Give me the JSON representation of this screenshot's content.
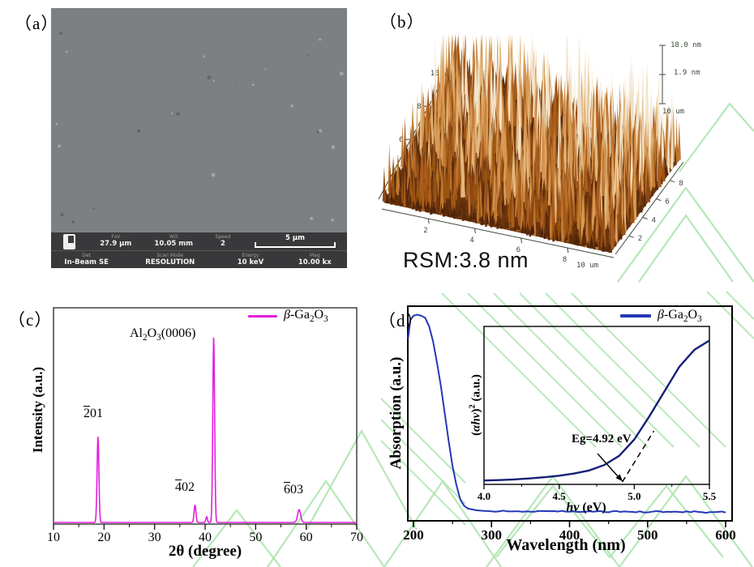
{
  "colors": {
    "xrd_line": "#e120dd",
    "abs_line": "#2438b8",
    "inset_line": "#161f78",
    "watermark": "#a9e3a9",
    "sem_bg": "#7d8082",
    "sem_bar_bg": "#39393b"
  },
  "panels": {
    "a": {
      "label": "（a）",
      "sem": {
        "row1": [
          {
            "label": "FoV",
            "value": "27.9 μm"
          },
          {
            "label": "WD",
            "value": "10.05 mm"
          },
          {
            "label": "Speed",
            "value": "2"
          }
        ],
        "scalebar_label": "5 μm",
        "row2": [
          {
            "label": "Det",
            "value": "In-Beam SE"
          },
          {
            "label": "Scan Mode",
            "value": "RESOLUTION"
          },
          {
            "label": "Energy",
            "value": "10 keV"
          },
          {
            "label": "Mag",
            "value": "10.00 kx"
          }
        ]
      }
    },
    "b": {
      "label": "（b）",
      "rsm_label": "RSM:3.8 nm",
      "z_max": "18.0 nm",
      "z_mid": "1.9 nm",
      "x_end_label": "10 um",
      "y_end_label": "10 um",
      "x_ticks": [
        "2",
        "4",
        "6",
        "8"
      ],
      "y_ticks": [
        "2",
        "4",
        "6",
        "8"
      ],
      "left_ticks": [
        "6",
        "8",
        "10"
      ]
    },
    "c": {
      "label": "（c）",
      "ylabel": "Intensity (a.u.)",
      "xlabel": "2θ (degree)",
      "legend": {
        "beta": "β",
        "rest": "-Ga",
        "sub1": "2",
        "mid": "O",
        "sub2": "3"
      },
      "al2o3": {
        "p1": "Al",
        "s1": "2",
        "p2": "O",
        "s2": "3",
        "p3": "(0006)"
      },
      "peak_labels": {
        "p201": {
          "over": "2",
          "rest": "01"
        },
        "p402": {
          "over": "4",
          "rest": "02"
        },
        "p603": {
          "over": "6",
          "rest": "03"
        }
      }
    },
    "d": {
      "label": "（d）",
      "ylabel": "Absorption (a.u.)",
      "xlabel": "Wavelength (nm)",
      "legend": {
        "beta": "β",
        "rest": "-Ga",
        "sub1": "2",
        "mid": "O",
        "sub2": "3"
      },
      "inset": {
        "ylabel_open": "(",
        "ylabel_italic": "αhv",
        "ylabel_close": ")",
        "ylabel_sup": "2",
        "ylabel_rest": " (a.u.)",
        "xlabel_italic": "hv",
        "xlabel_rest": " (eV)",
        "eg_label": "Eg=4.92 eV"
      }
    }
  },
  "chart_data": [
    {
      "id": "xrd",
      "type": "line",
      "panel": "c",
      "title": "",
      "xlabel": "2θ (degree)",
      "ylabel": "Intensity (a.u.)",
      "xlim": [
        10,
        70
      ],
      "ylim": [
        0,
        1
      ],
      "grid": false,
      "legend_position": "top-right",
      "legend": [
        "β-Ga2O3"
      ],
      "x_ticks": [
        10,
        20,
        30,
        40,
        50,
        60,
        70
      ],
      "peaks": [
        {
          "two_theta": 18.8,
          "rel_intensity": 0.415,
          "sigma": 0.18,
          "label": "-201"
        },
        {
          "two_theta": 38.0,
          "rel_intensity": 0.085,
          "sigma": 0.18,
          "label": "-402"
        },
        {
          "two_theta": 40.3,
          "rel_intensity": 0.028,
          "sigma": 0.15,
          "label": ""
        },
        {
          "two_theta": 41.7,
          "rel_intensity": 0.9,
          "sigma": 0.18,
          "label": "Al2O3(0006)"
        },
        {
          "two_theta": 58.6,
          "rel_intensity": 0.062,
          "sigma": 0.3,
          "label": "-603"
        }
      ]
    },
    {
      "id": "absorption",
      "type": "line",
      "panel": "d",
      "title": "",
      "xlabel": "Wavelength (nm)",
      "ylabel": "Absorption (a.u.)",
      "xlim": [
        190,
        600
      ],
      "ylim": [
        0,
        1
      ],
      "grid": false,
      "legend_position": "top-right",
      "legend": [
        "β-Ga2O3"
      ],
      "x_ticks": [
        200,
        300,
        400,
        500,
        600
      ],
      "x": [
        193,
        196,
        200,
        205,
        210,
        215,
        220,
        225,
        230,
        235,
        240,
        245,
        250,
        255,
        260,
        265,
        270,
        280,
        290,
        300,
        320,
        340,
        360,
        380,
        400,
        420,
        440,
        460,
        480,
        500,
        520,
        540,
        560,
        580,
        600
      ],
      "y": [
        0.86,
        0.95,
        0.97,
        0.975,
        0.97,
        0.96,
        0.92,
        0.85,
        0.75,
        0.64,
        0.51,
        0.38,
        0.26,
        0.17,
        0.1,
        0.07,
        0.058,
        0.05,
        0.047,
        0.046,
        0.045,
        0.045,
        0.044,
        0.045,
        0.044,
        0.045,
        0.043,
        0.044,
        0.043,
        0.042,
        0.043,
        0.042,
        0.042,
        0.041,
        0.041
      ]
    },
    {
      "id": "tauc_inset",
      "type": "line",
      "panel": "d-inset",
      "title": "",
      "xlabel": "hv (eV)",
      "ylabel": "(ahv)^2 (a.u.)",
      "xlim": [
        4.0,
        5.5
      ],
      "ylim": [
        0,
        1
      ],
      "grid": false,
      "eg_ev": 4.92,
      "x_ticks": [
        4.0,
        4.5,
        5.0,
        5.5
      ],
      "x_tick_labels": [
        "4.0",
        "4.5",
        "5.0",
        "5.5"
      ],
      "x": [
        4.0,
        4.1,
        4.2,
        4.3,
        4.4,
        4.5,
        4.6,
        4.7,
        4.8,
        4.9,
        5.0,
        5.1,
        5.2,
        5.3,
        5.4,
        5.5
      ],
      "y": [
        0.025,
        0.028,
        0.032,
        0.038,
        0.046,
        0.056,
        0.07,
        0.09,
        0.125,
        0.185,
        0.29,
        0.44,
        0.6,
        0.76,
        0.87,
        0.93
      ],
      "dashed_line": {
        "x1": 4.92,
        "y1": 0.015,
        "x2": 5.13,
        "y2": 0.345
      }
    }
  ]
}
